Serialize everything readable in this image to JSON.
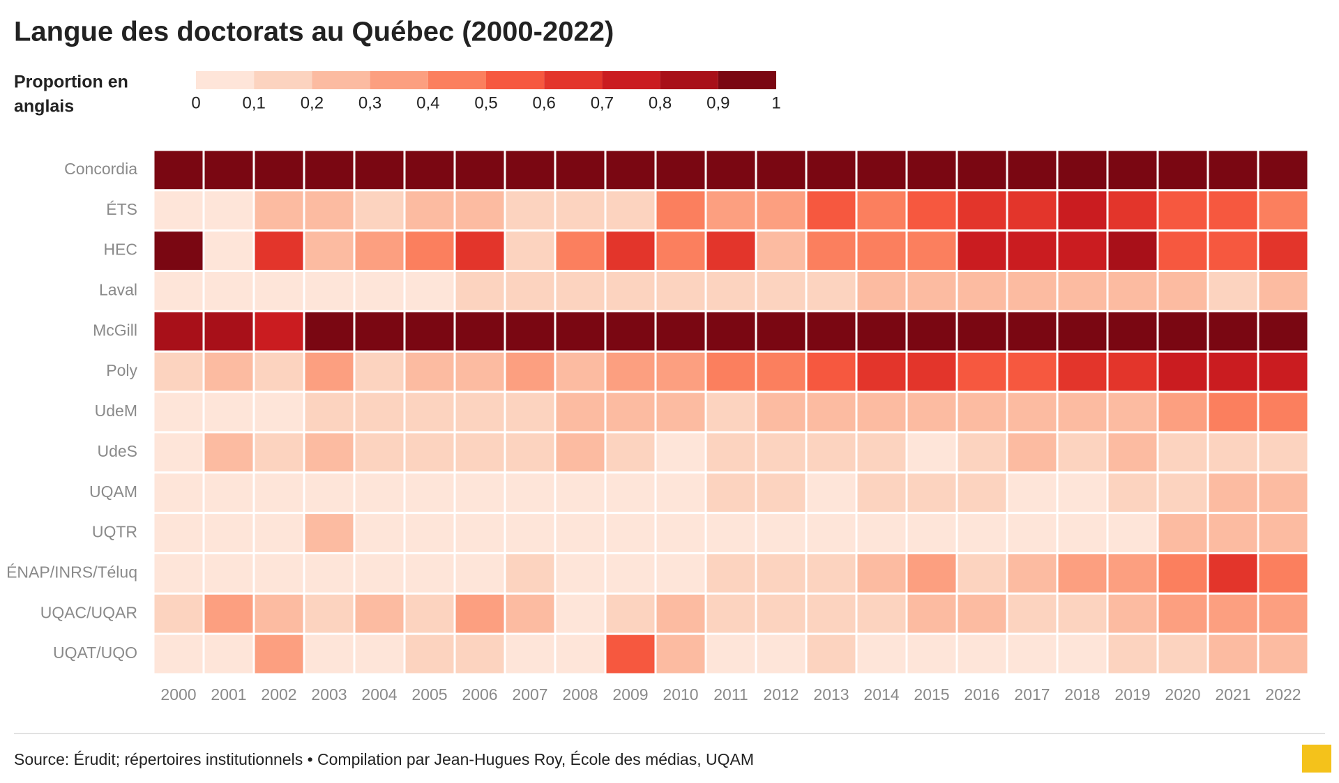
{
  "chart_data": {
    "type": "heatmap",
    "title": "Langue des doctorats au Québec (2000-2022)",
    "legend_title": [
      "Proportion en",
      "anglais"
    ],
    "source": "Source: Érudit; répertoires institutionnels • Compilation par Jean-Hugues Roy, École des médias, UQAM",
    "categories": [
      "2000",
      "2001",
      "2002",
      "2003",
      "2004",
      "2005",
      "2006",
      "2007",
      "2008",
      "2009",
      "2010",
      "2011",
      "2012",
      "2013",
      "2014",
      "2015",
      "2016",
      "2017",
      "2018",
      "2019",
      "2020",
      "2021",
      "2022"
    ],
    "rows": [
      "Concordia",
      "ÉTS",
      "HEC",
      "Laval",
      "McGill",
      "Poly",
      "UdeM",
      "UdeS",
      "UQAM",
      "UQTR",
      "ÉNAP/INRS/Téluq",
      "UQAC/UQAR",
      "UQAT/UQO"
    ],
    "values": [
      [
        0.95,
        0.95,
        0.95,
        0.95,
        0.95,
        0.95,
        0.95,
        0.95,
        0.95,
        0.95,
        0.95,
        0.95,
        0.95,
        0.95,
        0.95,
        0.95,
        0.95,
        0.95,
        0.95,
        0.95,
        0.95,
        0.95,
        0.95
      ],
      [
        0.05,
        0.05,
        0.25,
        0.25,
        0.15,
        0.25,
        0.25,
        0.15,
        0.15,
        0.15,
        0.45,
        0.35,
        0.35,
        0.55,
        0.45,
        0.55,
        0.65,
        0.65,
        0.75,
        0.65,
        0.55,
        0.55,
        0.45
      ],
      [
        0.95,
        0.05,
        0.65,
        0.25,
        0.35,
        0.45,
        0.65,
        0.15,
        0.45,
        0.65,
        0.45,
        0.65,
        0.25,
        0.45,
        0.45,
        0.45,
        0.75,
        0.75,
        0.75,
        0.85,
        0.55,
        0.55,
        0.65
      ],
      [
        0.05,
        0.05,
        0.05,
        0.05,
        0.05,
        0.05,
        0.15,
        0.15,
        0.15,
        0.15,
        0.15,
        0.15,
        0.15,
        0.15,
        0.25,
        0.25,
        0.25,
        0.25,
        0.25,
        0.25,
        0.25,
        0.15,
        0.25
      ],
      [
        0.85,
        0.85,
        0.75,
        0.95,
        0.95,
        0.95,
        0.95,
        0.95,
        0.95,
        0.95,
        0.95,
        0.95,
        0.95,
        0.95,
        0.95,
        0.95,
        0.95,
        0.95,
        0.95,
        0.95,
        0.95,
        0.95,
        0.95
      ],
      [
        0.15,
        0.25,
        0.15,
        0.35,
        0.15,
        0.25,
        0.25,
        0.35,
        0.25,
        0.35,
        0.35,
        0.45,
        0.45,
        0.55,
        0.65,
        0.65,
        0.55,
        0.55,
        0.65,
        0.65,
        0.75,
        0.75,
        0.75
      ],
      [
        0.05,
        0.05,
        0.05,
        0.15,
        0.15,
        0.15,
        0.15,
        0.15,
        0.25,
        0.25,
        0.25,
        0.15,
        0.25,
        0.25,
        0.25,
        0.25,
        0.25,
        0.25,
        0.25,
        0.25,
        0.35,
        0.45,
        0.45
      ],
      [
        0.05,
        0.25,
        0.15,
        0.25,
        0.15,
        0.15,
        0.15,
        0.15,
        0.25,
        0.15,
        0.05,
        0.15,
        0.15,
        0.15,
        0.15,
        0.05,
        0.15,
        0.25,
        0.15,
        0.25,
        0.15,
        0.15,
        0.15
      ],
      [
        0.05,
        0.05,
        0.05,
        0.05,
        0.05,
        0.05,
        0.05,
        0.05,
        0.05,
        0.05,
        0.05,
        0.15,
        0.15,
        0.05,
        0.15,
        0.15,
        0.15,
        0.05,
        0.05,
        0.15,
        0.15,
        0.25,
        0.25
      ],
      [
        0.05,
        0.05,
        0.05,
        0.25,
        0.05,
        0.05,
        0.05,
        0.05,
        0.05,
        0.05,
        0.05,
        0.05,
        0.05,
        0.05,
        0.05,
        0.05,
        0.05,
        0.05,
        0.05,
        0.05,
        0.25,
        0.25,
        0.25
      ],
      [
        0.05,
        0.05,
        0.05,
        0.05,
        0.05,
        0.05,
        0.05,
        0.15,
        0.05,
        0.05,
        0.05,
        0.15,
        0.15,
        0.15,
        0.25,
        0.35,
        0.15,
        0.25,
        0.35,
        0.35,
        0.45,
        0.65,
        0.45
      ],
      [
        0.15,
        0.35,
        0.25,
        0.15,
        0.25,
        0.15,
        0.35,
        0.25,
        0.05,
        0.15,
        0.25,
        0.15,
        0.15,
        0.15,
        0.15,
        0.25,
        0.25,
        0.15,
        0.15,
        0.25,
        0.35,
        0.35,
        0.35
      ],
      [
        0.05,
        0.05,
        0.35,
        0.05,
        0.05,
        0.15,
        0.15,
        0.05,
        0.05,
        0.55,
        0.25,
        0.05,
        0.05,
        0.15,
        0.05,
        0.05,
        0.05,
        0.05,
        0.05,
        0.15,
        0.15,
        0.25,
        0.25
      ]
    ],
    "colorscale": [
      "#fee5d9",
      "#fcd3bf",
      "#fcbba1",
      "#fc9f80",
      "#fb7f5e",
      "#f6583f",
      "#e3352b",
      "#ca1c20",
      "#a81019",
      "#7a0712"
    ],
    "zlim": [
      0,
      1
    ],
    "zticks": [
      0,
      {
        "value": 0.1,
        "label": "0,1"
      },
      {
        "value": 0.2,
        "label": "0,2"
      },
      {
        "value": 0.3,
        "label": "0,3"
      },
      {
        "value": 0.4,
        "label": "0,4"
      },
      {
        "value": 0.5,
        "label": "0,5"
      },
      {
        "value": 0.6,
        "label": "0,6"
      },
      {
        "value": 0.7,
        "label": "0,7"
      },
      {
        "value": 0.8,
        "label": "0,8"
      },
      {
        "value": 0.9,
        "label": "0,9"
      },
      1
    ]
  }
}
